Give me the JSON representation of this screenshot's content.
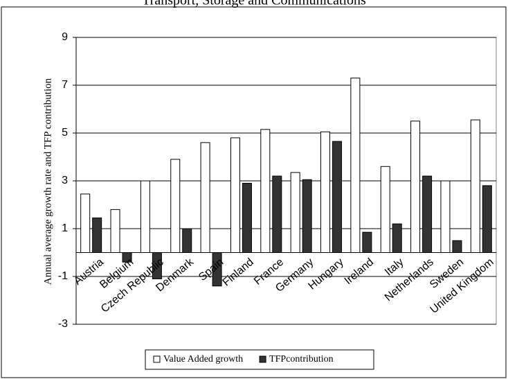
{
  "chart_data": {
    "type": "bar",
    "title": "Transport, Storage and Communications",
    "y_label": "Annual average growth rate and TFP contribution",
    "categories": [
      "Austria",
      "Belgium",
      "Czech Republic",
      "Denmark",
      "Spain",
      "Finland",
      "France",
      "Germany",
      "Hungary",
      "Ireland",
      "Italy",
      "Netherlands",
      "Sweden",
      "United Kingdom"
    ],
    "series": [
      {
        "name": "Value Added growth",
        "color": "#ffffff",
        "values": [
          2.45,
          1.8,
          3.0,
          3.9,
          4.6,
          4.8,
          5.15,
          3.35,
          5.05,
          7.3,
          3.6,
          5.5,
          3.0,
          5.55
        ]
      },
      {
        "name": "TFPcontribution",
        "color": "#333333",
        "values": [
          1.45,
          -0.4,
          -1.1,
          1.0,
          -1.4,
          2.9,
          3.2,
          3.05,
          4.65,
          0.85,
          1.2,
          3.2,
          0.5,
          2.8
        ]
      }
    ],
    "ylim": [
      -3,
      9
    ],
    "yticks": [
      -3,
      -1,
      1,
      3,
      5,
      7,
      9
    ],
    "grid": true,
    "legend": "bottom"
  }
}
